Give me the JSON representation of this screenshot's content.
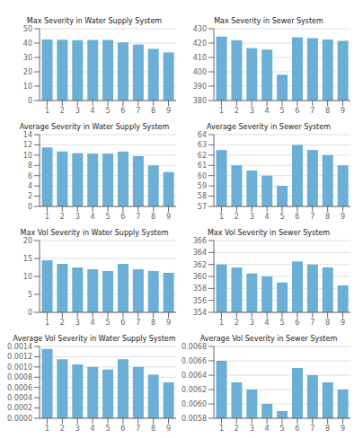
{
  "chart_data": [
    {
      "type": "bar",
      "title": "Max Severity in Water Supply System",
      "categories": [
        1,
        2,
        3,
        4,
        5,
        6,
        7,
        8,
        9
      ],
      "values": [
        42.5,
        42.3,
        42.0,
        42.2,
        42.2,
        40.5,
        39.0,
        36.0,
        33.5
      ],
      "color": "#6baed6",
      "ylim": [
        0,
        50
      ],
      "yticks": [
        0,
        10,
        20,
        30,
        40,
        50
      ],
      "grid": true
    },
    {
      "type": "bar",
      "title": "Max Severity in Sewer System",
      "categories": [
        1,
        2,
        3,
        4,
        5,
        6,
        7,
        8,
        9
      ],
      "values": [
        424.5,
        422.0,
        416.5,
        415.5,
        398.0,
        424.0,
        423.5,
        422.5,
        421.5
      ],
      "color": "#6baed6",
      "ylim": [
        380,
        430
      ],
      "yticks": [
        380,
        390,
        400,
        410,
        420,
        430
      ],
      "grid": true
    },
    {
      "type": "bar",
      "title": "Average Severity in Water Supply System",
      "categories": [
        1,
        2,
        3,
        4,
        5,
        6,
        7,
        8,
        9
      ],
      "values": [
        11.5,
        10.7,
        10.4,
        10.3,
        10.3,
        10.7,
        9.8,
        8.0,
        6.7
      ],
      "color": "#6baed6",
      "ylim": [
        0,
        14
      ],
      "yticks": [
        0,
        2,
        4,
        6,
        8,
        10,
        12,
        14
      ],
      "grid": true
    },
    {
      "type": "bar",
      "title": "Average Severity in Sewer System",
      "categories": [
        1,
        2,
        3,
        4,
        5,
        6,
        7,
        8,
        9
      ],
      "values": [
        62.5,
        61.0,
        60.5,
        60.0,
        59.0,
        63.0,
        62.5,
        62.0,
        61.0
      ],
      "color": "#6baed6",
      "ylim": [
        57,
        64
      ],
      "yticks": [
        57,
        58,
        59,
        60,
        61,
        62,
        63,
        64
      ],
      "grid": true
    },
    {
      "type": "bar",
      "title": "Max Vol Severity in Water Supply System",
      "categories": [
        1,
        2,
        3,
        4,
        5,
        6,
        7,
        8,
        9
      ],
      "values": [
        14.5,
        13.5,
        12.5,
        12.0,
        11.5,
        13.5,
        12.0,
        11.5,
        11.0
      ],
      "color": "#6baed6",
      "ylim": [
        0,
        20
      ],
      "yticks": [
        0,
        5,
        10,
        15,
        20
      ],
      "grid": true
    },
    {
      "type": "bar",
      "title": "Max Vol Severity in Sewer System",
      "categories": [
        1,
        2,
        3,
        4,
        5,
        6,
        7,
        8,
        9
      ],
      "values": [
        362.0,
        361.5,
        360.5,
        360.0,
        359.0,
        362.5,
        362.0,
        361.5,
        358.5
      ],
      "color": "#6baed6",
      "ylim": [
        354,
        366
      ],
      "yticks": [
        354,
        356,
        358,
        360,
        362,
        364,
        366
      ],
      "grid": true
    },
    {
      "type": "bar",
      "title": "Average Vol Severity in Water Supply System",
      "categories": [
        1,
        2,
        3,
        4,
        5,
        6,
        7,
        8,
        9
      ],
      "values": [
        0.00135,
        0.00115,
        0.00105,
        0.001,
        0.00095,
        0.00115,
        0.001,
        0.00085,
        0.0007
      ],
      "color": "#6baed6",
      "ylim": [
        0,
        0.0014
      ],
      "yticks": [
        {
          "value": 0,
          "label": "0.0000"
        },
        {
          "value": 0.0002,
          "label": "0.0002"
        },
        {
          "value": 0.0004,
          "label": "0.0004"
        },
        {
          "value": 0.0006,
          "label": "0.0006"
        },
        {
          "value": 0.0008,
          "label": "0.0008"
        },
        {
          "value": 0.001,
          "label": "0.0010"
        },
        {
          "value": 0.0012,
          "label": "0.0012"
        },
        {
          "value": 0.0014,
          "label": "0.0014"
        }
      ],
      "grid": true
    },
    {
      "type": "bar",
      "title": "Average Vol Severity in Sewer System",
      "categories": [
        1,
        2,
        3,
        4,
        5,
        6,
        7,
        8,
        9
      ],
      "values": [
        0.0066,
        0.0063,
        0.0062,
        0.006,
        0.0059,
        0.0065,
        0.0064,
        0.0063,
        0.0062
      ],
      "color": "#6baed6",
      "ylim": [
        0.0058,
        0.0068
      ],
      "yticks": [
        {
          "value": 0.0058,
          "label": "0.0058"
        },
        {
          "value": 0.006,
          "label": "0.0060"
        },
        {
          "value": 0.0062,
          "label": "0.0062"
        },
        {
          "value": 0.0064,
          "label": "0.0064"
        },
        {
          "value": 0.0066,
          "label": "0.0066"
        },
        {
          "value": 0.0068,
          "label": "0.0068"
        }
      ],
      "grid": true
    }
  ]
}
